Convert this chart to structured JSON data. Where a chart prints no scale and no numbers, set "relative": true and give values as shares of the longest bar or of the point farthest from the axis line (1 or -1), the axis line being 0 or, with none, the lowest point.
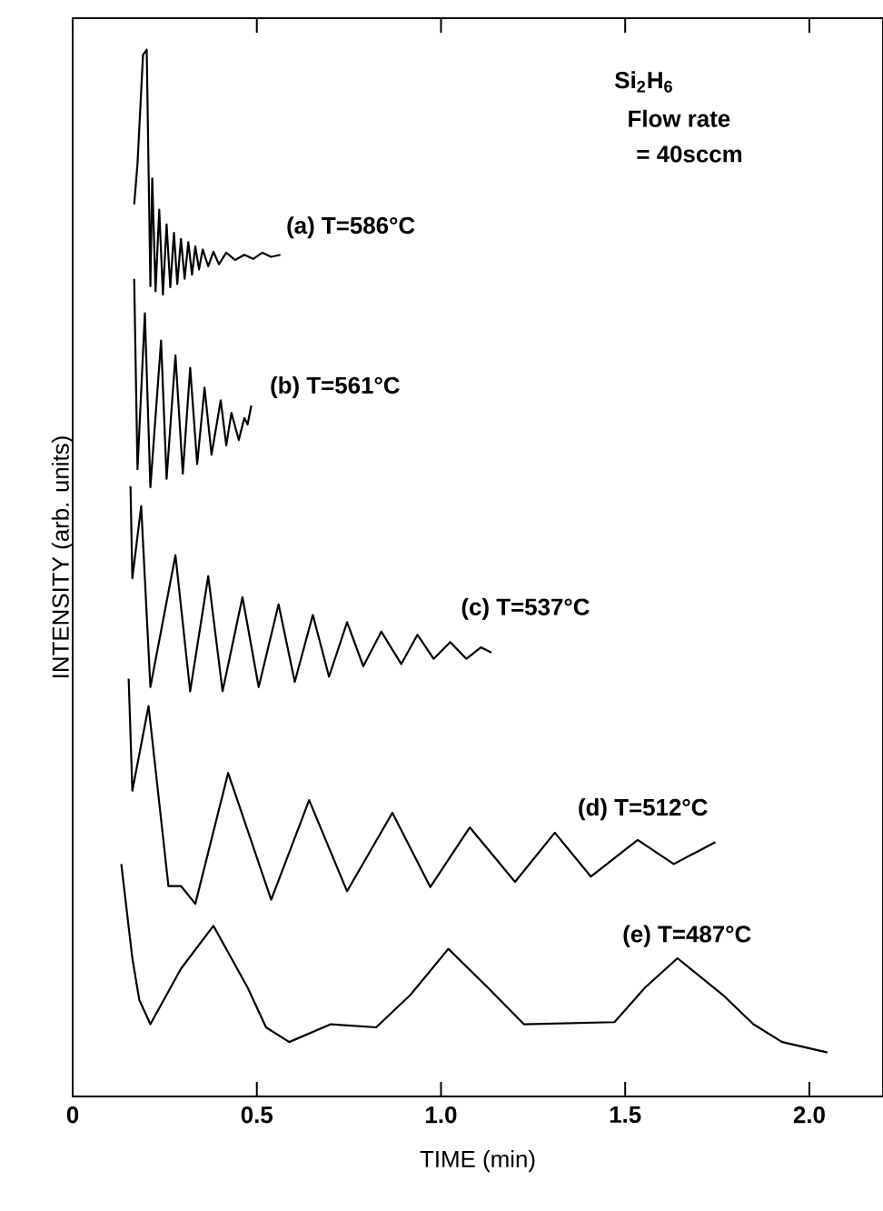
{
  "chart_data": {
    "type": "line",
    "relative": true,
    "xlabel": "TIME (min)",
    "ylabel": "INTENSITY (arb. units)",
    "xlim": [
      0,
      2.2
    ],
    "xticks": [
      0,
      0.5,
      {
        "value": 1,
        "label": "1.0"
      },
      1.5,
      {
        "value": 2,
        "label": "2.0"
      }
    ],
    "grid": false,
    "legend": false,
    "marker": "none",
    "line_style": "solid",
    "annotations": [
      "Si$_{2}$H$_{6}$",
      "Flow rate",
      "= 40sccm"
    ],
    "series": [
      {
        "name": "(a) T=586°C",
        "color": "#000000",
        "x": [
          0.167,
          0.176,
          0.191,
          0.201,
          0.211,
          0.216,
          0.225,
          0.235,
          0.245,
          0.255,
          0.265,
          0.275,
          0.284,
          0.294,
          0.304,
          0.314,
          0.324,
          0.333,
          0.343,
          0.353,
          0.368,
          0.382,
          0.397,
          0.417,
          0.441,
          0.466,
          0.49,
          0.515,
          0.539,
          0.564
        ],
        "values": [
          0.852,
          0.891,
          0.995,
          1.0,
          0.774,
          0.877,
          0.769,
          0.847,
          0.766,
          0.833,
          0.773,
          0.825,
          0.776,
          0.819,
          0.781,
          0.816,
          0.785,
          0.812,
          0.79,
          0.809,
          0.793,
          0.807,
          0.795,
          0.806,
          0.799,
          0.804,
          0.8,
          0.806,
          0.802,
          0.804
        ]
      },
      {
        "name": "(b) T=561°C",
        "color": "#000000",
        "x": [
          0.167,
          0.176,
          0.196,
          0.211,
          0.24,
          0.255,
          0.279,
          0.299,
          0.319,
          0.338,
          0.358,
          0.377,
          0.402,
          0.417,
          0.431,
          0.451,
          0.466,
          0.475,
          0.485
        ],
        "values": [
          0.781,
          0.599,
          0.748,
          0.582,
          0.722,
          0.59,
          0.708,
          0.595,
          0.696,
          0.604,
          0.677,
          0.613,
          0.665,
          0.622,
          0.653,
          0.627,
          0.648,
          0.642,
          0.66
        ]
      },
      {
        "name": "(c) T=537°C",
        "color": "#000000",
        "x": [
          0.157,
          0.162,
          0.186,
          0.211,
          0.279,
          0.319,
          0.368,
          0.407,
          0.461,
          0.505,
          0.559,
          0.603,
          0.652,
          0.696,
          0.745,
          0.789,
          0.838,
          0.892,
          0.936,
          0.98,
          1.025,
          1.069,
          1.108,
          1.137
        ],
        "values": [
          0.583,
          0.495,
          0.564,
          0.391,
          0.517,
          0.387,
          0.497,
          0.387,
          0.477,
          0.391,
          0.47,
          0.396,
          0.46,
          0.401,
          0.453,
          0.411,
          0.444,
          0.413,
          0.441,
          0.418,
          0.434,
          0.418,
          0.429,
          0.424
        ]
      },
      {
        "name": "(d) T=512°C",
        "color": "#000000",
        "x": [
          0.152,
          0.162,
          0.206,
          0.26,
          0.294,
          0.333,
          0.422,
          0.539,
          0.642,
          0.745,
          0.868,
          0.971,
          1.078,
          1.201,
          1.309,
          1.407,
          1.534,
          1.632,
          1.745
        ],
        "values": [
          0.399,
          0.292,
          0.373,
          0.201,
          0.201,
          0.184,
          0.309,
          0.188,
          0.283,
          0.196,
          0.271,
          0.2,
          0.257,
          0.205,
          0.252,
          0.21,
          0.245,
          0.222,
          0.243
        ]
      },
      {
        "name": "(e) T=487°C",
        "color": "#000000",
        "x": [
          0.132,
          0.162,
          0.181,
          0.211,
          0.294,
          0.382,
          0.475,
          0.525,
          0.588,
          0.701,
          0.824,
          0.917,
          1.02,
          1.127,
          1.225,
          1.471,
          1.554,
          1.642,
          1.765,
          1.848,
          1.926,
          2.049
        ],
        "values": [
          0.222,
          0.132,
          0.092,
          0.069,
          0.122,
          0.163,
          0.104,
          0.066,
          0.052,
          0.069,
          0.066,
          0.097,
          0.141,
          0.104,
          0.069,
          0.071,
          0.104,
          0.132,
          0.097,
          0.069,
          0.052,
          0.042
        ]
      }
    ]
  }
}
